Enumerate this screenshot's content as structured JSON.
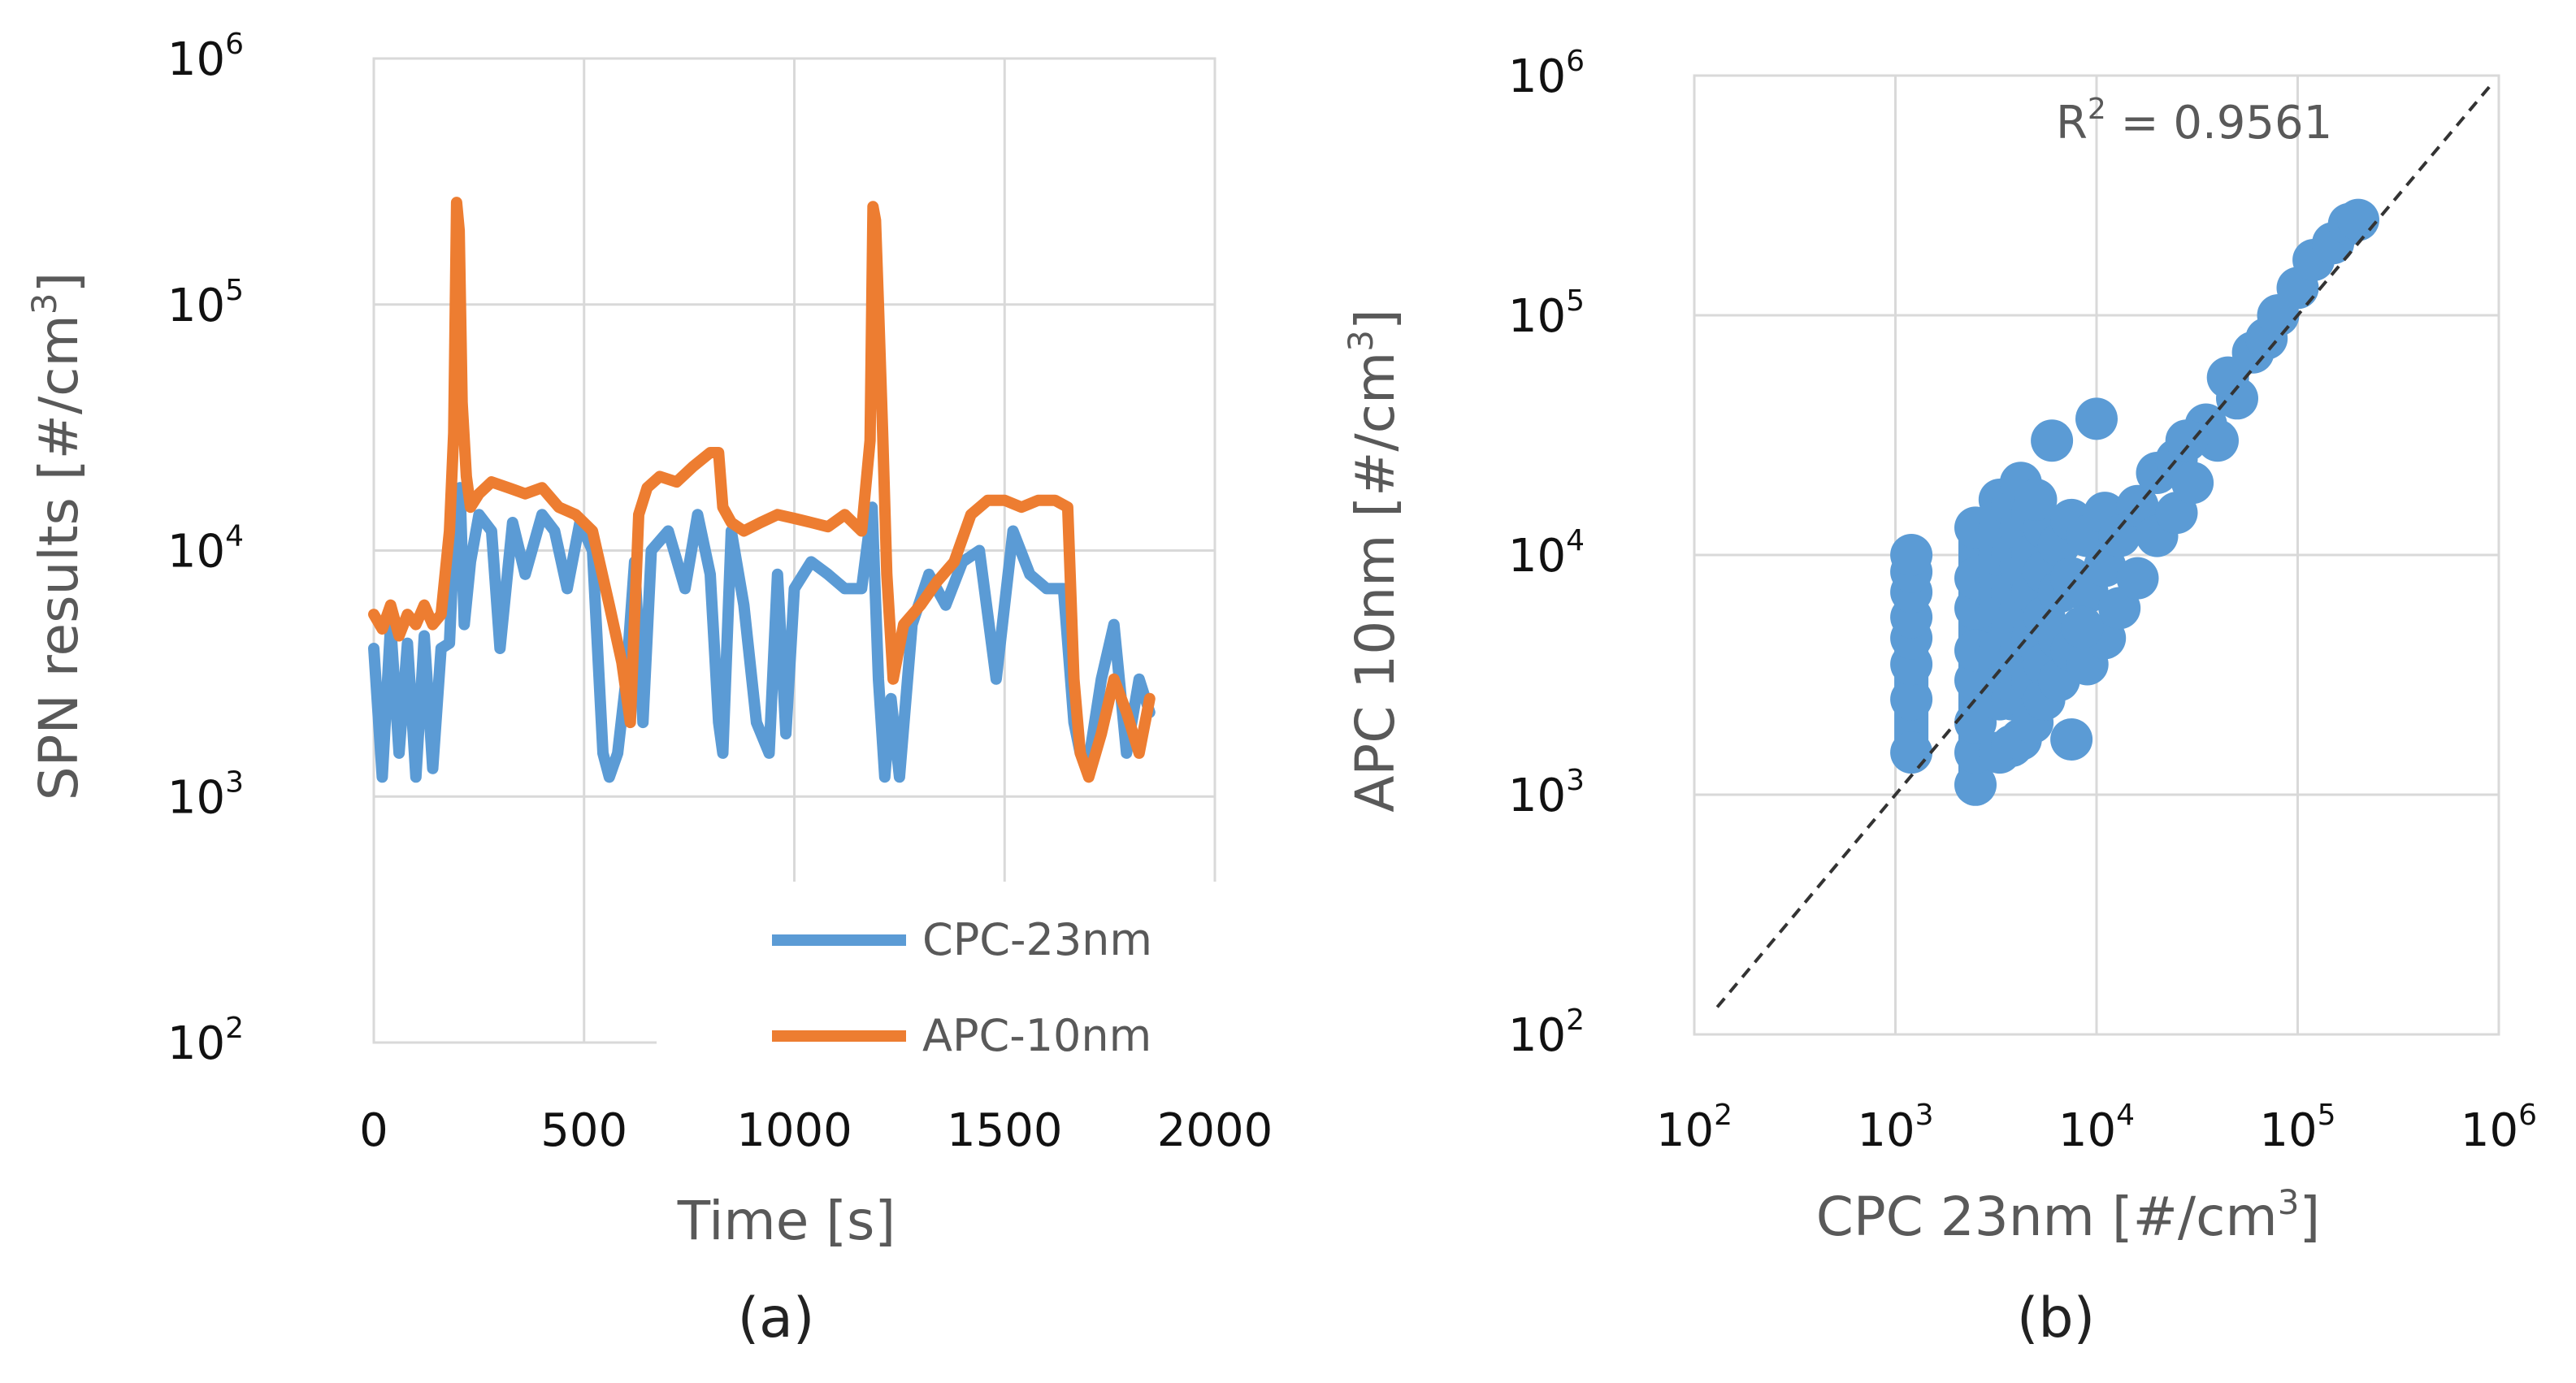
{
  "colors": {
    "cpc": "#5b9bd5",
    "apc": "#ed7d31",
    "grid": "#d9d9d9",
    "text": "#595959",
    "fit": "#333333"
  },
  "chart_data": [
    {
      "id": "a",
      "type": "line",
      "caption": "(a)",
      "xlabel": "Time [s]",
      "ylabel": "SPN results  [#/cm3]",
      "ylabel_main": "SPN results  [#/cm",
      "ylabel_sup": "3",
      "ylabel_end": "]",
      "yscale": "log",
      "xlim": [
        0,
        2000
      ],
      "ylim": [
        100,
        1000000
      ],
      "xticks": [
        {
          "value": 0,
          "label": "0"
        },
        {
          "value": 500,
          "label": "500"
        },
        {
          "value": 1000,
          "label": "1000"
        },
        {
          "value": 1500,
          "label": "1500"
        },
        {
          "value": 2000,
          "label": "2000"
        }
      ],
      "yticks": [
        {
          "value": 100,
          "base": "10",
          "exp": "2"
        },
        {
          "value": 1000,
          "base": "10",
          "exp": "3"
        },
        {
          "value": 10000,
          "base": "10",
          "exp": "4"
        },
        {
          "value": 100000,
          "base": "10",
          "exp": "5"
        },
        {
          "value": 1000000,
          "base": "10",
          "exp": "6"
        }
      ],
      "legend": {
        "position": "bottom-right",
        "entries": [
          "CPC-23nm",
          "APC-10nm"
        ]
      },
      "series": [
        {
          "name": "CPC-23nm",
          "x": [
            0,
            20,
            40,
            60,
            80,
            100,
            120,
            140,
            160,
            180,
            195,
            205,
            215,
            230,
            250,
            280,
            300,
            330,
            360,
            400,
            430,
            460,
            490,
            520,
            545,
            560,
            580,
            600,
            620,
            640,
            660,
            700,
            740,
            770,
            800,
            820,
            830,
            850,
            880,
            910,
            940,
            960,
            980,
            1000,
            1040,
            1080,
            1120,
            1160,
            1185,
            1200,
            1215,
            1230,
            1250,
            1280,
            1320,
            1360,
            1400,
            1440,
            1480,
            1520,
            1560,
            1600,
            1640,
            1665,
            1680,
            1700,
            1730,
            1760,
            1790,
            1820,
            1845
          ],
          "y": [
            4000,
            1200,
            5000,
            1500,
            4200,
            1200,
            4500,
            1300,
            4000,
            4200,
            16000,
            18000,
            5000,
            9000,
            14000,
            12000,
            4000,
            13000,
            8000,
            14000,
            12000,
            7000,
            13000,
            10000,
            1500,
            1200,
            1500,
            3000,
            9000,
            2000,
            10000,
            12000,
            7000,
            14000,
            8000,
            2000,
            1500,
            12000,
            6000,
            2000,
            1500,
            8000,
            1800,
            7000,
            9000,
            8000,
            7000,
            7000,
            15000,
            3000,
            1200,
            2500,
            1200,
            5000,
            8000,
            6000,
            9000,
            10000,
            3000,
            12000,
            8000,
            7000,
            7000,
            2000,
            1500,
            1400,
            3000,
            5000,
            1500,
            3000,
            2200
          ]
        },
        {
          "name": "APC-10nm",
          "x": [
            0,
            20,
            40,
            60,
            80,
            100,
            120,
            140,
            160,
            180,
            190,
            197,
            203,
            210,
            220,
            230,
            250,
            280,
            320,
            360,
            400,
            440,
            480,
            520,
            560,
            590,
            610,
            630,
            650,
            680,
            720,
            760,
            800,
            820,
            830,
            850,
            880,
            920,
            960,
            1000,
            1040,
            1080,
            1120,
            1160,
            1180,
            1187,
            1193,
            1200,
            1210,
            1220,
            1235,
            1260,
            1300,
            1340,
            1380,
            1420,
            1460,
            1500,
            1540,
            1580,
            1620,
            1650,
            1665,
            1680,
            1700,
            1730,
            1760,
            1790,
            1820,
            1845
          ],
          "y": [
            5500,
            4800,
            6000,
            4500,
            5500,
            5000,
            6000,
            5000,
            5500,
            12000,
            30000,
            260000,
            200000,
            40000,
            20000,
            15000,
            17000,
            19000,
            18000,
            17000,
            18000,
            15000,
            14000,
            12000,
            6000,
            3500,
            2000,
            14000,
            18000,
            20000,
            19000,
            22000,
            25000,
            25000,
            15000,
            13000,
            12000,
            13000,
            14000,
            13500,
            13000,
            12500,
            14000,
            12000,
            28000,
            250000,
            220000,
            100000,
            30000,
            8000,
            3000,
            5000,
            6000,
            7500,
            9000,
            14000,
            16000,
            16000,
            15000,
            16000,
            16000,
            15000,
            3000,
            1500,
            1200,
            1800,
            3000,
            2200,
            1500,
            2500
          ]
        }
      ]
    },
    {
      "id": "b",
      "type": "scatter",
      "caption": "(b)",
      "xlabel": "CPC 23nm [#/cm3]",
      "xlabel_main": "CPC 23nm [#/cm",
      "xlabel_sup": "3",
      "xlabel_end": "]",
      "ylabel": "APC 10nm [#/cm3]",
      "ylabel_main": "APC 10nm [#/cm",
      "ylabel_sup": "3",
      "ylabel_end": "]",
      "xscale": "log",
      "yscale": "log",
      "xlim": [
        100,
        1000000
      ],
      "ylim": [
        100,
        1000000
      ],
      "xticks": [
        {
          "value": 100,
          "base": "10",
          "exp": "2"
        },
        {
          "value": 1000,
          "base": "10",
          "exp": "3"
        },
        {
          "value": 10000,
          "base": "10",
          "exp": "4"
        },
        {
          "value": 100000,
          "base": "10",
          "exp": "5"
        },
        {
          "value": 1000000,
          "base": "10",
          "exp": "6"
        }
      ],
      "yticks": [
        {
          "value": 100,
          "base": "10",
          "exp": "2"
        },
        {
          "value": 1000,
          "base": "10",
          "exp": "3"
        },
        {
          "value": 10000,
          "base": "10",
          "exp": "4"
        },
        {
          "value": 100000,
          "base": "10",
          "exp": "5"
        },
        {
          "value": 1000000,
          "base": "10",
          "exp": "6"
        }
      ],
      "annotation": {
        "text_main": "R",
        "text_sup": "2",
        "text_end": " = 0.9561",
        "text": "R2 = 0.9561"
      },
      "fit_line": {
        "from": [
          130,
          130
        ],
        "to": [
          900000,
          900000
        ],
        "style": "dashed"
      },
      "points": {
        "name": "CPC 23nm vs APC 10nm",
        "x": [
          1200,
          1200,
          1200,
          1200,
          1200,
          1200,
          1200,
          1200,
          2500,
          2500,
          2500,
          2500,
          2500,
          2500,
          2500,
          2500,
          3300,
          3300,
          3300,
          3300,
          3300,
          3300,
          3300,
          3300,
          3800,
          3800,
          3800,
          3800,
          3800,
          3800,
          3800,
          4200,
          4200,
          4200,
          4200,
          4200,
          4200,
          4200,
          4800,
          4800,
          4800,
          4800,
          4800,
          4800,
          5500,
          5500,
          5500,
          5500,
          5500,
          6500,
          6500,
          6500,
          6500,
          7500,
          7500,
          7500,
          7500,
          9000,
          9000,
          9000,
          11000,
          11000,
          11000,
          13000,
          13000,
          16000,
          16000,
          20000,
          20000,
          25000,
          25000,
          30000,
          35000,
          40000,
          50000,
          60000,
          70000,
          80000,
          100000,
          120000,
          150000,
          180000,
          200000,
          28000,
          45000,
          10000,
          8500,
          6000,
          5000
        ],
        "y": [
          1500,
          2500,
          3500,
          4500,
          5500,
          7000,
          8500,
          10000,
          1100,
          1500,
          2000,
          3000,
          4000,
          6000,
          8000,
          13000,
          1500,
          2500,
          4000,
          6000,
          8000,
          10000,
          13000,
          17000,
          1600,
          2500,
          3500,
          5000,
          7000,
          10000,
          16000,
          1700,
          2600,
          4000,
          6000,
          9000,
          13000,
          20000,
          2000,
          3000,
          4500,
          7000,
          10000,
          15000,
          2500,
          3500,
          5500,
          8500,
          13000,
          3000,
          4500,
          7000,
          11000,
          1700,
          4000,
          8000,
          14000,
          3500,
          7000,
          12000,
          4500,
          9000,
          15000,
          6000,
          12000,
          8000,
          16000,
          12000,
          22000,
          15000,
          25000,
          20000,
          35000,
          30000,
          45000,
          70000,
          80000,
          100000,
          130000,
          170000,
          200000,
          240000,
          250000,
          30000,
          55000,
          37000,
          5000,
          30000,
          17000
        ]
      }
    }
  ]
}
